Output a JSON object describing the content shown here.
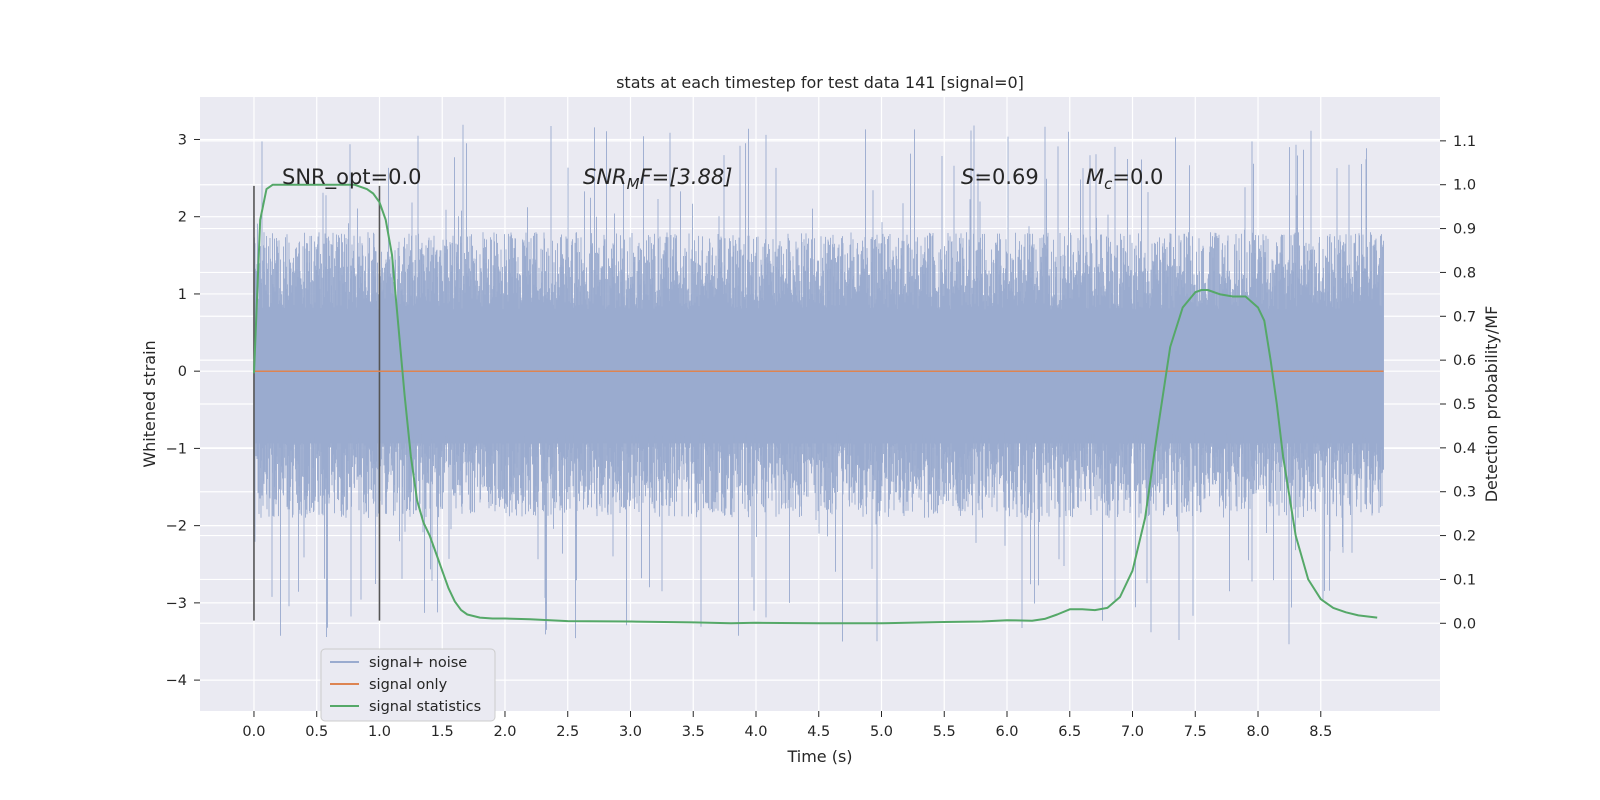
{
  "chart_data": {
    "type": "line",
    "title": "stats at each timestep for test data 141 [signal=0]",
    "xlabel": "Time (s)",
    "ylabel": "Whitened strain",
    "y2label": "Detection probability/MF",
    "xlim": [
      -0.43,
      9.45
    ],
    "ylim": [
      -4.4,
      3.55
    ],
    "y2lim": [
      -0.2,
      1.2
    ],
    "xticks": [
      "0.0",
      "0.5",
      "1.0",
      "1.5",
      "2.0",
      "2.5",
      "3.0",
      "3.5",
      "4.0",
      "4.5",
      "5.0",
      "5.5",
      "6.0",
      "6.5",
      "7.0",
      "7.5",
      "8.0",
      "8.5"
    ],
    "yticks": [
      "3",
      "2",
      "1",
      "0",
      "−1",
      "−2",
      "−3",
      "−4"
    ],
    "y2ticks": [
      "1.1",
      "1.0",
      "0.9",
      "0.8",
      "0.7",
      "0.6",
      "0.5",
      "0.4",
      "0.3",
      "0.2",
      "0.1",
      "0.0"
    ],
    "grid": true,
    "legend_position": "lower-left",
    "annotations": {
      "snr_opt": "SNR_opt=0.0",
      "snr_mf_sym": "SNR",
      "snr_mf_sub": "M",
      "snr_mf_tail": "F=[3.88]",
      "s_sym": "S",
      "s_tail": "=0.69",
      "mc_sym": "M",
      "mc_sub": "c",
      "mc_tail": "=0.0"
    },
    "noise_envelope": {
      "t_start": 0.0,
      "t_end": 9.0,
      "typical_min": -1.7,
      "typical_max": 1.6,
      "extreme_min": -3.55,
      "extreme_max": 3.2
    },
    "vertical_markers": [
      {
        "x": 0.0,
        "y_range": [
          -3.23,
          2.4
        ]
      },
      {
        "x": 1.0,
        "y_range": [
          -3.23,
          2.4
        ]
      }
    ],
    "series": [
      {
        "name": "signal+ noise",
        "color": "#9aabcf"
      },
      {
        "name": "signal only",
        "color": "#dd8452",
        "x": [
          0.0,
          9.0
        ],
        "values": [
          0.0,
          0.0
        ]
      },
      {
        "name": "signal statistics",
        "color": "#55a868",
        "axis": "right",
        "x": [
          0.0,
          0.05,
          0.1,
          0.15,
          0.2,
          0.3,
          0.4,
          0.5,
          0.6,
          0.7,
          0.8,
          0.9,
          0.95,
          1.0,
          1.05,
          1.1,
          1.15,
          1.2,
          1.25,
          1.3,
          1.35,
          1.4,
          1.45,
          1.5,
          1.55,
          1.6,
          1.65,
          1.7,
          1.8,
          1.9,
          2.0,
          2.2,
          2.5,
          3.0,
          3.5,
          3.8,
          4.0,
          4.5,
          5.0,
          5.5,
          5.8,
          6.0,
          6.2,
          6.3,
          6.4,
          6.5,
          6.6,
          6.7,
          6.8,
          6.9,
          7.0,
          7.1,
          7.2,
          7.3,
          7.4,
          7.5,
          7.55,
          7.6,
          7.7,
          7.8,
          7.9,
          8.0,
          8.05,
          8.1,
          8.15,
          8.2,
          8.3,
          8.4,
          8.5,
          8.6,
          8.7,
          8.8,
          8.95
        ],
        "values": [
          0.57,
          0.92,
          0.99,
          1.0,
          1.0,
          1.0,
          1.0,
          1.0,
          1.0,
          1.0,
          1.0,
          0.99,
          0.98,
          0.96,
          0.92,
          0.84,
          0.68,
          0.52,
          0.38,
          0.28,
          0.23,
          0.2,
          0.16,
          0.12,
          0.08,
          0.05,
          0.03,
          0.02,
          0.013,
          0.011,
          0.011,
          0.009,
          0.005,
          0.004,
          0.002,
          0.0,
          0.001,
          0.0,
          0.0,
          0.003,
          0.004,
          0.007,
          0.006,
          0.01,
          0.02,
          0.032,
          0.032,
          0.03,
          0.035,
          0.06,
          0.12,
          0.24,
          0.44,
          0.63,
          0.72,
          0.755,
          0.76,
          0.76,
          0.75,
          0.745,
          0.745,
          0.72,
          0.69,
          0.6,
          0.5,
          0.38,
          0.2,
          0.1,
          0.055,
          0.035,
          0.025,
          0.018,
          0.013
        ]
      }
    ]
  }
}
